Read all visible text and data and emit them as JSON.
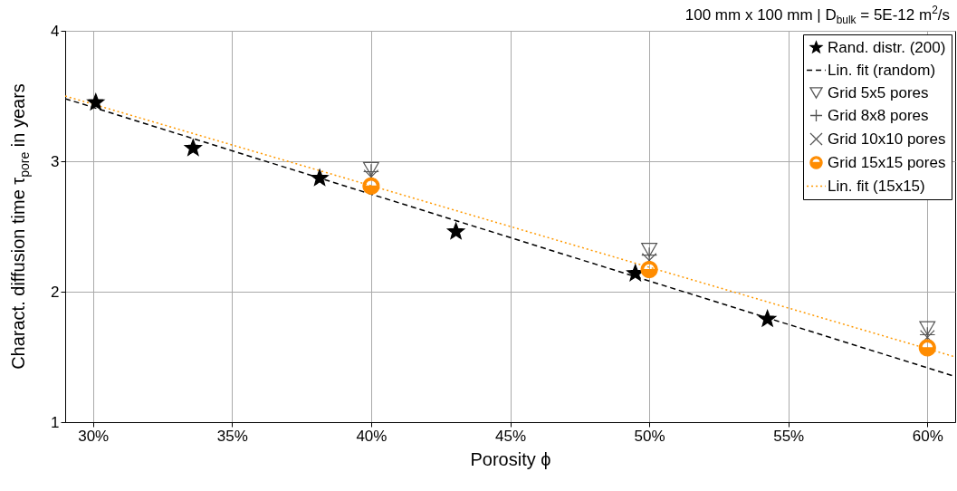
{
  "chart_data": {
    "type": "scatter",
    "title": "100 mm x 100 mm | D$_{bulk}$ = 5E-12 m$^{2}$/s",
    "xlabel": "Porosity ϕ",
    "ylabel": "Charact. diffusion time  τ$_{pore}$ in years",
    "xlim": [
      29,
      61
    ],
    "xticks": [
      {
        "value": 30,
        "label": "30%"
      },
      {
        "value": 35,
        "label": "35%"
      },
      {
        "value": 40,
        "label": "40%"
      },
      {
        "value": 45,
        "label": "45%"
      },
      {
        "value": 50,
        "label": "50%"
      },
      {
        "value": 55,
        "label": "55%"
      },
      {
        "value": 60,
        "label": "60%"
      }
    ],
    "ylim": [
      1,
      4
    ],
    "yticks": [
      1,
      2,
      3,
      4
    ],
    "grid": true,
    "legend": "top right",
    "series": [
      {
        "name": "Rand. distr. (200)",
        "marker": "star",
        "color": "#000000",
        "x": [
          30.1,
          33.6,
          38.15,
          43.05,
          49.5,
          54.25
        ],
        "values": [
          3.45,
          3.1,
          2.87,
          2.46,
          2.14,
          1.79
        ]
      },
      {
        "name": "Lin. fit (random)",
        "type": "line",
        "line_style": "dashed",
        "color": "#000000",
        "x": [
          29,
          61
        ],
        "values": [
          3.48,
          1.35
        ]
      },
      {
        "name": "Grid 5x5 pores",
        "marker": "triangle",
        "color": "#555555",
        "x": [
          40,
          50,
          60
        ],
        "values": [
          2.94,
          2.32,
          1.72
        ]
      },
      {
        "name": "Grid 8x8 pores",
        "marker": "cross",
        "color": "#555555",
        "x": [
          40,
          50,
          60
        ],
        "values": [
          2.92,
          2.28,
          1.67
        ]
      },
      {
        "name": "Grid 10x10 pores",
        "marker": "x",
        "color": "#555555",
        "x": [
          40,
          50,
          60
        ],
        "values": [
          2.88,
          2.24,
          1.65
        ]
      },
      {
        "name": "Grid 15x15 pores",
        "marker": "circle",
        "color": "#ff8c00",
        "x": [
          40,
          50,
          60
        ],
        "values": [
          2.81,
          2.17,
          1.57
        ]
      },
      {
        "name": "Lin. fit (15x15)",
        "type": "line",
        "line_style": "dotted",
        "color": "#ff9900",
        "x": [
          29,
          61
        ],
        "values": [
          3.5,
          1.5
        ]
      }
    ]
  }
}
